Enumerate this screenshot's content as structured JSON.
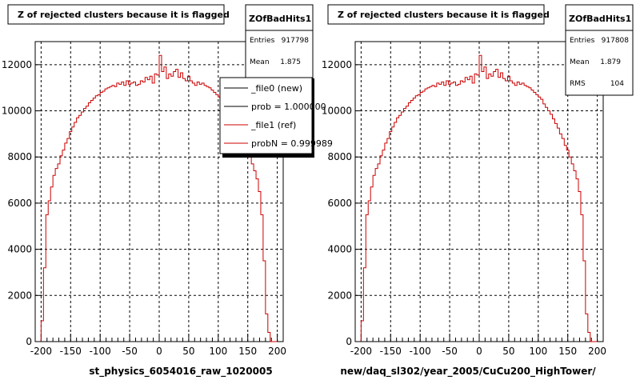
{
  "footer_text": "",
  "chart_data": [
    {
      "type": "histogram",
      "title": "Z of rejected clusters  because it is flagged",
      "xlabel": "st_physics_6054016_raw_1020005",
      "ylabel": "",
      "xlim": [
        -210,
        210
      ],
      "ylim": [
        0,
        13000
      ],
      "x_ticks": [
        -200,
        -150,
        -100,
        -50,
        0,
        50,
        100,
        150,
        200
      ],
      "y_ticks": [
        0,
        2000,
        4000,
        6000,
        8000,
        10000,
        12000
      ],
      "grid": true,
      "line_color": "#cc0000",
      "bin_edges_start": -200,
      "bin_width": 4,
      "counts": [
        900,
        3200,
        5500,
        6100,
        6700,
        7200,
        7500,
        7700,
        8050,
        8300,
        8600,
        8800,
        9100,
        9300,
        9500,
        9700,
        9800,
        9950,
        10100,
        10200,
        10350,
        10450,
        10550,
        10650,
        10700,
        10800,
        10850,
        10950,
        11000,
        11050,
        11100,
        11050,
        11200,
        11150,
        11250,
        11100,
        11300,
        11150,
        11200,
        11250,
        11100,
        11150,
        11300,
        11250,
        11450,
        11350,
        11500,
        11200,
        11600,
        11550,
        12400,
        11700,
        11900,
        11400,
        11600,
        11500,
        11700,
        11800,
        11450,
        11650,
        11400,
        11300,
        11500,
        11300,
        11200,
        11100,
        11250,
        11150,
        11200,
        11100,
        11050,
        11000,
        10900,
        10800,
        10700,
        10600,
        10500,
        10300,
        10150,
        10000,
        9850,
        9650,
        9450,
        9250,
        9000,
        8800,
        8500,
        8300,
        8000,
        7700,
        7400,
        7050,
        6500,
        5500,
        3500,
        1200,
        400,
        0,
        0,
        0
      ],
      "stats": {
        "name": "ZOfBadHits1",
        "rows": [
          {
            "label": "Entries",
            "value": "917798"
          },
          {
            "label": "Mean",
            "value": "1.875"
          }
        ]
      },
      "legend": {
        "placement": "top-right",
        "entries": [
          {
            "text": "_file0 (new)",
            "color": "#000000"
          },
          {
            "text": "prob = 1.000000",
            "color": "#000000"
          },
          {
            "text": "_file1 (ref)",
            "color": "#cc0000"
          },
          {
            "text": "probN = 0.999989",
            "color": "#cc0000"
          }
        ]
      }
    },
    {
      "type": "histogram",
      "title": "Z of rejected clusters  because it is flagged",
      "xlabel": "new/daq_sl302/year_2005/CuCu200_HighTower/",
      "ylabel": "",
      "xlim": [
        -210,
        210
      ],
      "ylim": [
        0,
        13000
      ],
      "x_ticks": [
        -200,
        -150,
        -100,
        -50,
        0,
        50,
        100,
        150,
        200
      ],
      "y_ticks": [
        0,
        2000,
        4000,
        6000,
        8000,
        10000,
        12000
      ],
      "grid": true,
      "line_color": "#cc0000",
      "bin_edges_start": -200,
      "bin_width": 4,
      "counts": [
        900,
        3200,
        5500,
        6100,
        6700,
        7200,
        7500,
        7700,
        8050,
        8300,
        8600,
        8800,
        9100,
        9300,
        9500,
        9700,
        9800,
        9950,
        10100,
        10200,
        10350,
        10450,
        10550,
        10650,
        10700,
        10800,
        10850,
        10950,
        11000,
        11050,
        11100,
        11050,
        11200,
        11150,
        11250,
        11100,
        11300,
        11150,
        11200,
        11250,
        11100,
        11150,
        11300,
        11250,
        11450,
        11350,
        11500,
        11200,
        11600,
        11550,
        12400,
        11700,
        11900,
        11400,
        11600,
        11500,
        11700,
        11800,
        11450,
        11650,
        11400,
        11300,
        11500,
        11300,
        11200,
        11100,
        11250,
        11150,
        11200,
        11100,
        11050,
        11000,
        10900,
        10800,
        10700,
        10600,
        10500,
        10300,
        10150,
        10000,
        9850,
        9650,
        9450,
        9250,
        9000,
        8800,
        8500,
        8300,
        8000,
        7700,
        7400,
        7050,
        6500,
        5500,
        3500,
        1200,
        400,
        0,
        0,
        0
      ],
      "stats": {
        "name": "ZOfBadHits1",
        "rows": [
          {
            "label": "Entries",
            "value": "917808"
          },
          {
            "label": "Mean",
            "value": "1.879"
          },
          {
            "label": "RMS",
            "value": "104"
          }
        ]
      }
    }
  ]
}
